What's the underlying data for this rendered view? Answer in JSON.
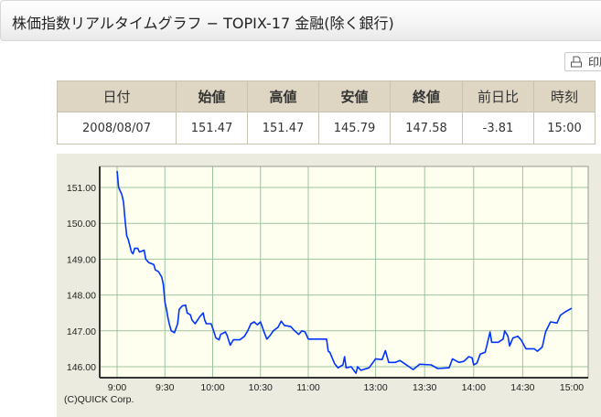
{
  "header": {
    "title": "株価指数リアルタイムグラフ − TOPIX-17 金融(除く銀行)"
  },
  "toolbar": {
    "print_label": "印刷",
    "print_icon": "printer-icon"
  },
  "quote_table": {
    "columns": [
      "日付",
      "始値",
      "高値",
      "安値",
      "終値",
      "前日比",
      "時刻"
    ],
    "row": [
      "2008/08/07",
      "151.47",
      "151.47",
      "145.79",
      "147.58",
      "-3.81",
      "15:00"
    ]
  },
  "colors": {
    "line": "#0033ff",
    "grid": "#9cc49c",
    "plot_bg": "#fffff0",
    "panel_bg": "#ecebdf",
    "header_bg": "#ded6c2"
  },
  "chart_data": {
    "type": "line",
    "xlabel": "",
    "ylabel": "",
    "ylim": [
      145.55,
      151.45
    ],
    "y_ticks": [
      "146.00",
      "147.00",
      "148.00",
      "149.00",
      "150.00",
      "151.00"
    ],
    "x_ticks": [
      "9:00",
      "9:30",
      "10:00",
      "10:30",
      "11:00",
      "13:00",
      "13:30",
      "14:00",
      "14:30",
      "15:00"
    ],
    "sessions": [
      [
        "9:00",
        "11:00"
      ],
      [
        "12:30",
        "15:00"
      ]
    ],
    "grid": true,
    "credit": "(C)QUICK Corp.",
    "points": [
      [
        "9:00",
        151.46
      ],
      [
        "9:01",
        151.0
      ],
      [
        "9:03",
        150.8
      ],
      [
        "9:04",
        150.6
      ],
      [
        "9:05",
        150.1
      ],
      [
        "9:06",
        149.65
      ],
      [
        "9:07",
        149.55
      ],
      [
        "9:09",
        149.2
      ],
      [
        "9:10",
        149.15
      ],
      [
        "9:11",
        149.3
      ],
      [
        "9:13",
        149.3
      ],
      [
        "9:14",
        149.2
      ],
      [
        "9:17",
        149.25
      ],
      [
        "9:18",
        149.0
      ],
      [
        "9:20",
        148.9
      ],
      [
        "9:23",
        148.85
      ],
      [
        "9:24",
        148.7
      ],
      [
        "9:26",
        148.65
      ],
      [
        "9:28",
        148.5
      ],
      [
        "9:29",
        148.3
      ],
      [
        "9:30",
        147.8
      ],
      [
        "9:31",
        147.6
      ],
      [
        "9:32",
        147.35
      ],
      [
        "9:33",
        147.15
      ],
      [
        "9:34",
        147.0
      ],
      [
        "9:36",
        146.95
      ],
      [
        "9:38",
        147.2
      ],
      [
        "9:39",
        147.6
      ],
      [
        "9:41",
        147.7
      ],
      [
        "9:43",
        147.72
      ],
      [
        "9:44",
        147.5
      ],
      [
        "9:46",
        147.45
      ],
      [
        "9:47",
        147.3
      ],
      [
        "9:49",
        147.2
      ],
      [
        "9:52",
        147.4
      ],
      [
        "9:54",
        147.5
      ],
      [
        "9:55",
        147.3
      ],
      [
        "9:56",
        147.2
      ],
      [
        "9:59",
        147.2
      ],
      [
        "10:01",
        146.95
      ],
      [
        "10:02",
        146.8
      ],
      [
        "10:04",
        146.75
      ],
      [
        "10:05",
        146.9
      ],
      [
        "10:08",
        146.97
      ],
      [
        "10:09",
        146.88
      ],
      [
        "10:11",
        146.6
      ],
      [
        "10:13",
        146.75
      ],
      [
        "10:17",
        146.75
      ],
      [
        "10:20",
        146.85
      ],
      [
        "10:22",
        147.0
      ],
      [
        "10:24",
        147.2
      ],
      [
        "10:26",
        147.25
      ],
      [
        "10:28",
        147.17
      ],
      [
        "10:30",
        147.25
      ],
      [
        "10:32",
        147.0
      ],
      [
        "10:34",
        146.77
      ],
      [
        "10:36",
        146.87
      ],
      [
        "10:38",
        147.0
      ],
      [
        "10:41",
        147.1
      ],
      [
        "10:43",
        147.27
      ],
      [
        "10:45",
        147.15
      ],
      [
        "10:49",
        147.12
      ],
      [
        "10:51",
        147.02
      ],
      [
        "10:54",
        146.9
      ],
      [
        "10:56",
        147.0
      ],
      [
        "10:58",
        146.97
      ],
      [
        "11:00",
        146.77
      ],
      [
        "12:30",
        146.77
      ],
      [
        "12:31",
        146.43
      ],
      [
        "12:32",
        146.4
      ],
      [
        "12:35",
        146.08
      ],
      [
        "12:37",
        145.97
      ],
      [
        "12:40",
        146.05
      ],
      [
        "12:41",
        146.28
      ],
      [
        "12:42",
        145.97
      ],
      [
        "12:45",
        146.0
      ],
      [
        "12:48",
        145.82
      ],
      [
        "12:49",
        146.0
      ],
      [
        "12:51",
        145.9
      ],
      [
        "12:56",
        145.97
      ],
      [
        "13:00",
        146.22
      ],
      [
        "13:04",
        146.2
      ],
      [
        "13:06",
        146.45
      ],
      [
        "13:08",
        146.12
      ],
      [
        "13:12",
        146.12
      ],
      [
        "13:15",
        146.17
      ],
      [
        "13:23",
        145.92
      ],
      [
        "13:27",
        146.07
      ],
      [
        "13:34",
        146.05
      ],
      [
        "13:38",
        145.95
      ],
      [
        "13:45",
        145.97
      ],
      [
        "13:47",
        146.22
      ],
      [
        "13:51",
        146.12
      ],
      [
        "13:54",
        146.15
      ],
      [
        "13:57",
        146.28
      ],
      [
        "13:59",
        146.25
      ],
      [
        "14:00",
        146.05
      ],
      [
        "14:02",
        146.1
      ],
      [
        "14:04",
        146.35
      ],
      [
        "14:07",
        146.4
      ],
      [
        "14:08",
        146.58
      ],
      [
        "14:10",
        146.97
      ],
      [
        "14:11",
        146.68
      ],
      [
        "14:15",
        146.68
      ],
      [
        "14:18",
        146.77
      ],
      [
        "14:19",
        147.0
      ],
      [
        "14:21",
        146.85
      ],
      [
        "14:22",
        146.58
      ],
      [
        "14:24",
        146.8
      ],
      [
        "14:27",
        146.85
      ],
      [
        "14:29",
        146.75
      ],
      [
        "14:32",
        146.5
      ],
      [
        "14:37",
        146.5
      ],
      [
        "14:39",
        146.43
      ],
      [
        "14:42",
        146.55
      ],
      [
        "14:44",
        146.97
      ],
      [
        "14:47",
        147.25
      ],
      [
        "14:51",
        147.22
      ],
      [
        "14:53",
        147.43
      ],
      [
        "14:56",
        147.53
      ],
      [
        "15:00",
        147.63
      ]
    ]
  }
}
